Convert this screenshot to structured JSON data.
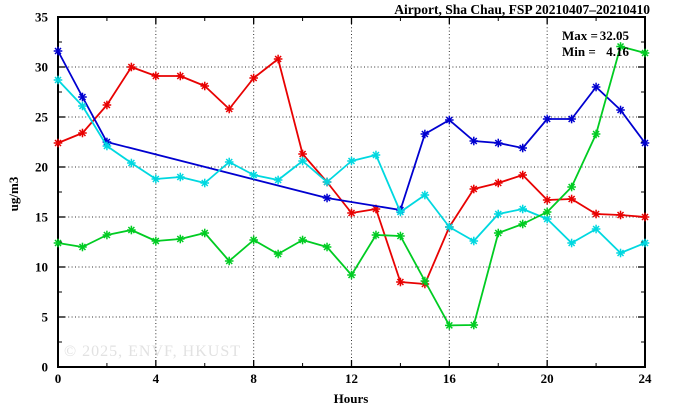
{
  "title": "Airport, Sha Chau, FSP 20210407–20210410",
  "stats": {
    "max_label": "Max =",
    "max_value": "32.05",
    "min_label": "Min =",
    "min_value": "4.16"
  },
  "watermark": "© 2025, ENVF, HKUST",
  "chart_data": {
    "type": "line",
    "title": "Airport, Sha Chau, FSP 20210407–20210410",
    "xlabel": "Hours",
    "ylabel": "ug/m3",
    "xlim": [
      0,
      24
    ],
    "ylim": [
      0,
      35
    ],
    "xticks": [
      0,
      4,
      8,
      12,
      16,
      20,
      24
    ],
    "yticks": [
      0,
      5,
      10,
      15,
      20,
      25,
      30,
      35
    ],
    "grid": true,
    "legend": "none",
    "annotations": [
      "Max = 32.05",
      "Min = 4.16"
    ],
    "marker": "star",
    "series": [
      {
        "name": "red-series",
        "color": "#e80202",
        "x": [
          0,
          1,
          2,
          3,
          4,
          5,
          6,
          7,
          8,
          9,
          10,
          11,
          12,
          13,
          14,
          15,
          16,
          17,
          18,
          19,
          20,
          21,
          22,
          23,
          24
        ],
        "y": [
          22.4,
          23.4,
          26.2,
          30.0,
          29.1,
          29.1,
          28.1,
          25.8,
          28.9,
          30.8,
          21.3,
          18.5,
          15.4,
          15.8,
          8.5,
          8.3,
          14.0,
          17.8,
          18.4,
          19.2,
          16.7,
          16.8,
          15.3,
          15.2,
          15.0
        ]
      },
      {
        "name": "blue-series",
        "color": "#0000d0",
        "x": [
          0,
          1,
          2,
          11,
          14,
          15,
          16,
          17,
          18,
          19,
          20,
          21,
          22,
          23,
          24
        ],
        "y": [
          31.6,
          27.0,
          22.5,
          16.9,
          15.7,
          23.3,
          24.7,
          22.6,
          22.4,
          21.9,
          24.8,
          24.8,
          28.0,
          25.7,
          22.4
        ]
      },
      {
        "name": "cyan-series",
        "color": "#00d8e0",
        "x": [
          0,
          1,
          2,
          3,
          4,
          5,
          6,
          7,
          8,
          9,
          10,
          11,
          12,
          13,
          14,
          15,
          16,
          17,
          18,
          19,
          20,
          21,
          22,
          23,
          24
        ],
        "y": [
          28.7,
          26.1,
          22.1,
          20.4,
          18.8,
          19.0,
          18.4,
          20.5,
          19.2,
          18.7,
          20.6,
          18.5,
          20.6,
          21.2,
          15.5,
          17.2,
          14.0,
          12.6,
          15.3,
          15.8,
          14.8,
          12.4,
          13.8,
          11.4,
          12.4
        ]
      },
      {
        "name": "green-series",
        "color": "#00cc22",
        "x": [
          0,
          1,
          2,
          3,
          4,
          5,
          6,
          7,
          8,
          9,
          10,
          11,
          12,
          13,
          14,
          15,
          16,
          17,
          18,
          19,
          20,
          21,
          22,
          23,
          24
        ],
        "y": [
          12.4,
          12.0,
          13.2,
          13.7,
          12.6,
          12.8,
          13.4,
          10.6,
          12.7,
          11.3,
          12.7,
          12.0,
          9.2,
          13.2,
          13.1,
          8.6,
          4.16,
          4.2,
          13.4,
          14.3,
          15.5,
          18.0,
          23.3,
          32.05,
          31.4
        ]
      }
    ]
  }
}
